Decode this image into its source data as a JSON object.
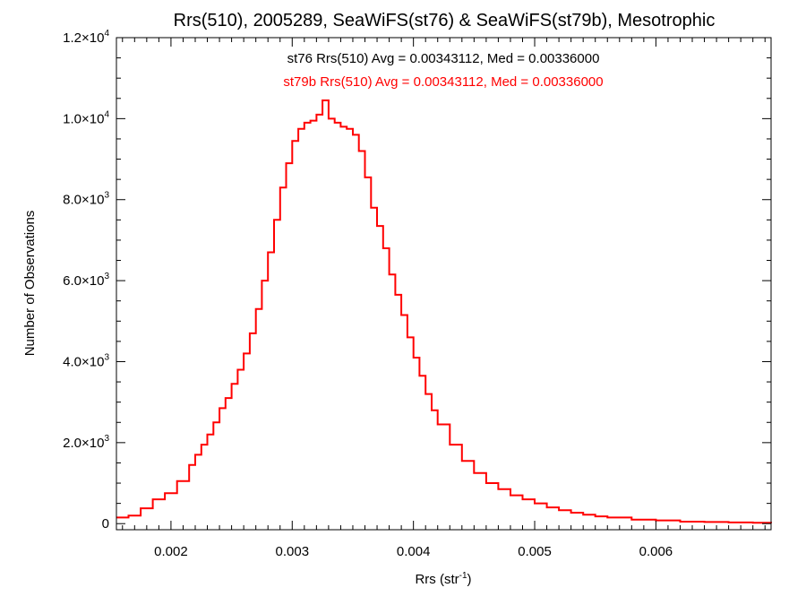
{
  "chart_data": {
    "type": "line",
    "step": true,
    "title": "Rrs(510), 2005289, SeaWiFS(st76) & SeaWiFS(st79b), Mesotrophic",
    "xlabel": "Rrs (str",
    "xlabel_sup": "-1",
    "xlabel_suffix": ")",
    "ylabel": "Number of Observations",
    "xlim": [
      0.00155,
      0.00695
    ],
    "ylim": [
      -150,
      12000
    ],
    "grid": false,
    "legend_placement": "top-center",
    "x_ticks": [
      {
        "value": 0.002,
        "label": "0.002"
      },
      {
        "value": 0.003,
        "label": "0.003"
      },
      {
        "value": 0.004,
        "label": "0.004"
      },
      {
        "value": 0.005,
        "label": "0.005"
      },
      {
        "value": 0.006,
        "label": "0.006"
      }
    ],
    "y_ticks": [
      {
        "value": 0,
        "label": "0",
        "sup": ""
      },
      {
        "value": 2000,
        "label": "2.0×10",
        "sup": "3"
      },
      {
        "value": 4000,
        "label": "4.0×10",
        "sup": "3"
      },
      {
        "value": 6000,
        "label": "6.0×10",
        "sup": "3"
      },
      {
        "value": 8000,
        "label": "8.0×10",
        "sup": "3"
      },
      {
        "value": 10000,
        "label": "1.0×10",
        "sup": "4"
      },
      {
        "value": 12000,
        "label": "1.2×10",
        "sup": "4"
      }
    ],
    "annotations": [
      {
        "text": "st76 Rrs(510) Avg = 0.00343112, Med = 0.00336000",
        "color": "#000000"
      },
      {
        "text": "st79b Rrs(510) Avg = 0.00343112, Med = 0.00336000",
        "color": "#ff0000"
      }
    ],
    "series": [
      {
        "color": "#ff0000",
        "x": [
          0.00155,
          0.00165,
          0.00175,
          0.00185,
          0.00195,
          0.00205,
          0.00215,
          0.0022,
          0.00225,
          0.0023,
          0.00235,
          0.0024,
          0.00245,
          0.0025,
          0.00255,
          0.0026,
          0.00265,
          0.0027,
          0.00275,
          0.0028,
          0.00285,
          0.0029,
          0.00295,
          0.003,
          0.00305,
          0.0031,
          0.00315,
          0.0032,
          0.00325,
          0.0033,
          0.00335,
          0.0034,
          0.00345,
          0.0035,
          0.00355,
          0.0036,
          0.00365,
          0.0037,
          0.00375,
          0.0038,
          0.00385,
          0.0039,
          0.00395,
          0.004,
          0.00405,
          0.0041,
          0.00415,
          0.0042,
          0.0043,
          0.0044,
          0.0045,
          0.0046,
          0.0047,
          0.0048,
          0.0049,
          0.005,
          0.0051,
          0.0052,
          0.0053,
          0.0054,
          0.0055,
          0.0056,
          0.0058,
          0.006,
          0.0062,
          0.0064,
          0.0066,
          0.0068,
          0.00695
        ],
        "y": [
          150,
          200,
          380,
          600,
          750,
          1050,
          1450,
          1700,
          1950,
          2200,
          2500,
          2850,
          3100,
          3450,
          3800,
          4200,
          4700,
          5300,
          6000,
          6700,
          7500,
          8300,
          8900,
          9450,
          9750,
          9900,
          9950,
          10100,
          10450,
          10000,
          9900,
          9800,
          9750,
          9600,
          9200,
          8550,
          7800,
          7350,
          6800,
          6150,
          5650,
          5150,
          4600,
          4100,
          3650,
          3200,
          2800,
          2450,
          1950,
          1550,
          1250,
          1000,
          850,
          700,
          600,
          500,
          400,
          330,
          270,
          220,
          180,
          150,
          100,
          80,
          50,
          40,
          30,
          20,
          10
        ]
      }
    ]
  }
}
